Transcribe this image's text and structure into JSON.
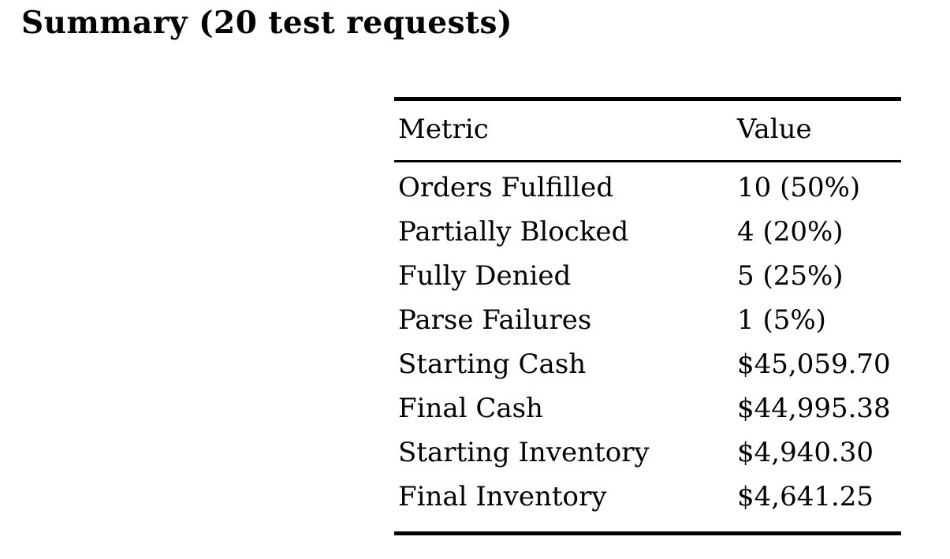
{
  "page": {
    "title": "Summary (20 test requests)"
  },
  "table": {
    "columns": {
      "metric": "Metric",
      "value": "Value"
    },
    "rows": [
      {
        "metric": "Orders Fulfilled",
        "value": "10 (50%)"
      },
      {
        "metric": "Partially Blocked",
        "value": "4 (20%)"
      },
      {
        "metric": "Fully Denied",
        "value": "5 (25%)"
      },
      {
        "metric": "Parse Failures",
        "value": "1 (5%)"
      },
      {
        "metric": "Starting Cash",
        "value": "$45,059.70"
      },
      {
        "metric": "Final Cash",
        "value": "$44,995.38"
      },
      {
        "metric": "Starting Inventory",
        "value": "$4,940.30"
      },
      {
        "metric": "Final Inventory",
        "value": "$4,641.25"
      }
    ]
  }
}
